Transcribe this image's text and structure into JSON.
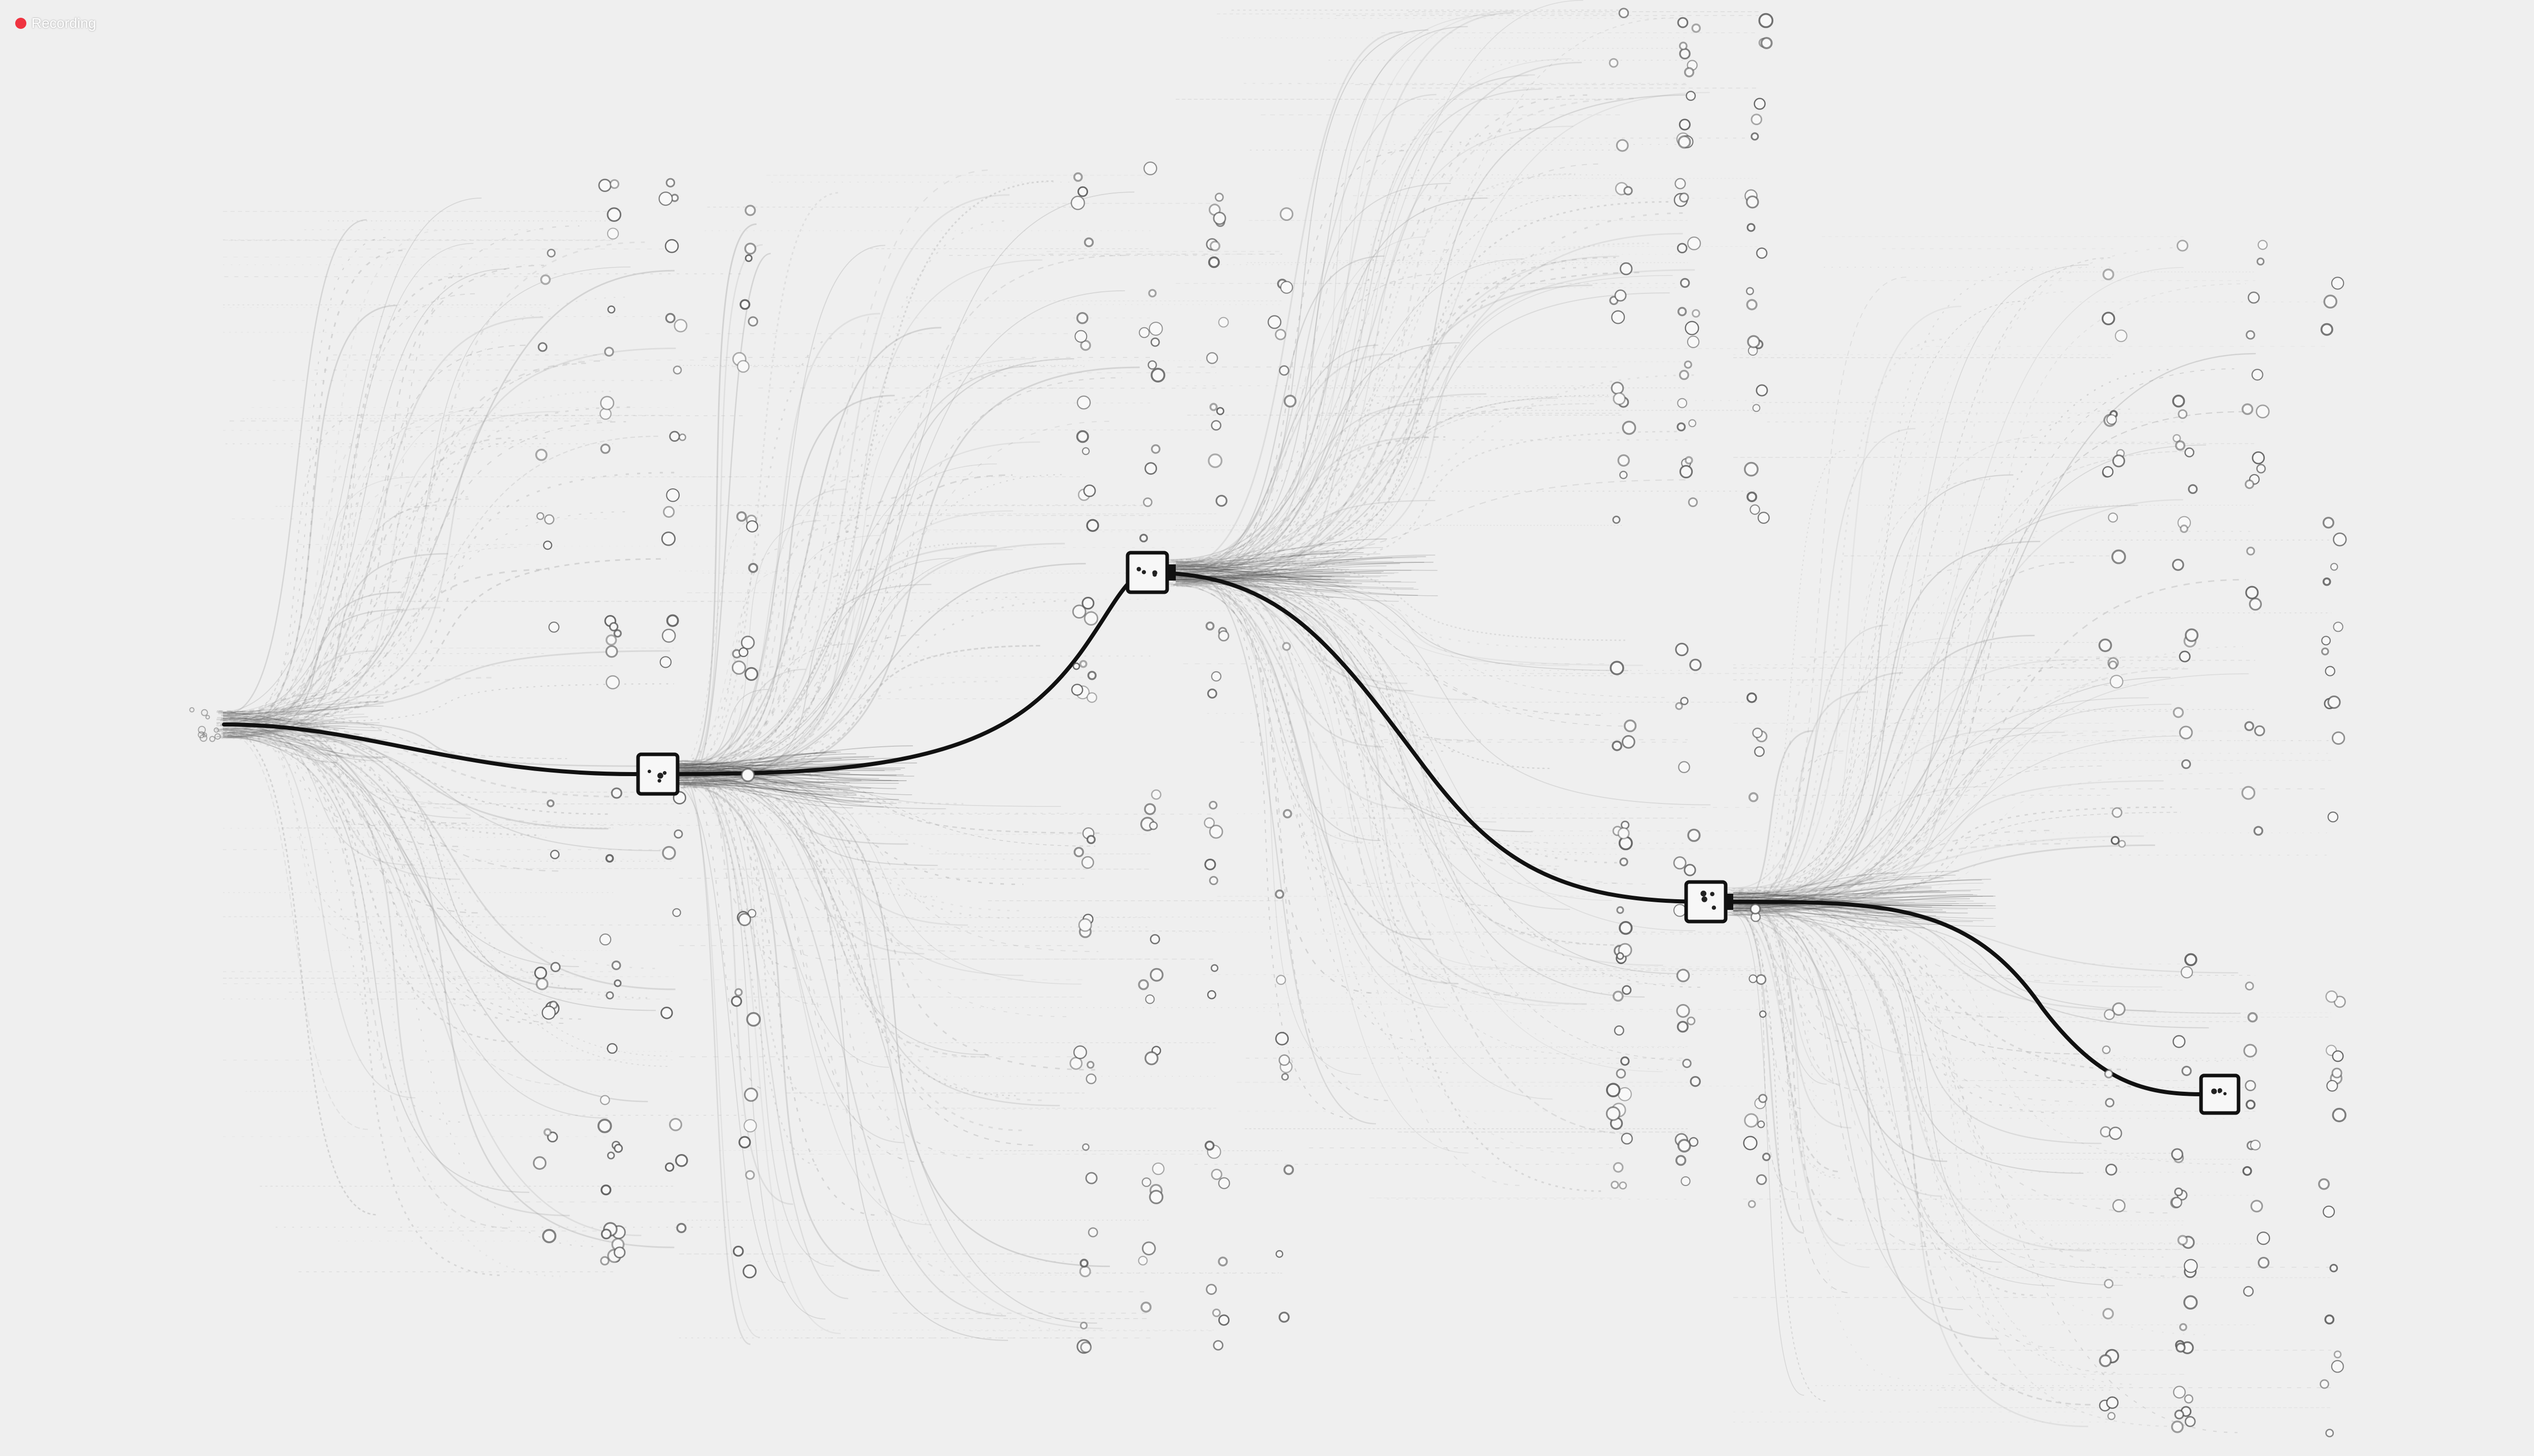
{
  "recording": {
    "label": "Recording",
    "dot_color": "#ef3340",
    "text_color": "#ffffff"
  },
  "visualization": {
    "kind": "branching flow-tree animation",
    "node_icon": "square-node-icon",
    "leaf_icon": "small-circle-icon",
    "colors": {
      "background": "#efefef",
      "main_path": "#111111",
      "branch_lines": "#9c9c9c",
      "leaf_outline": "#555555",
      "node_outline": "#111111",
      "node_fill": "#f7f7f7"
    },
    "main_node_count": 5
  }
}
